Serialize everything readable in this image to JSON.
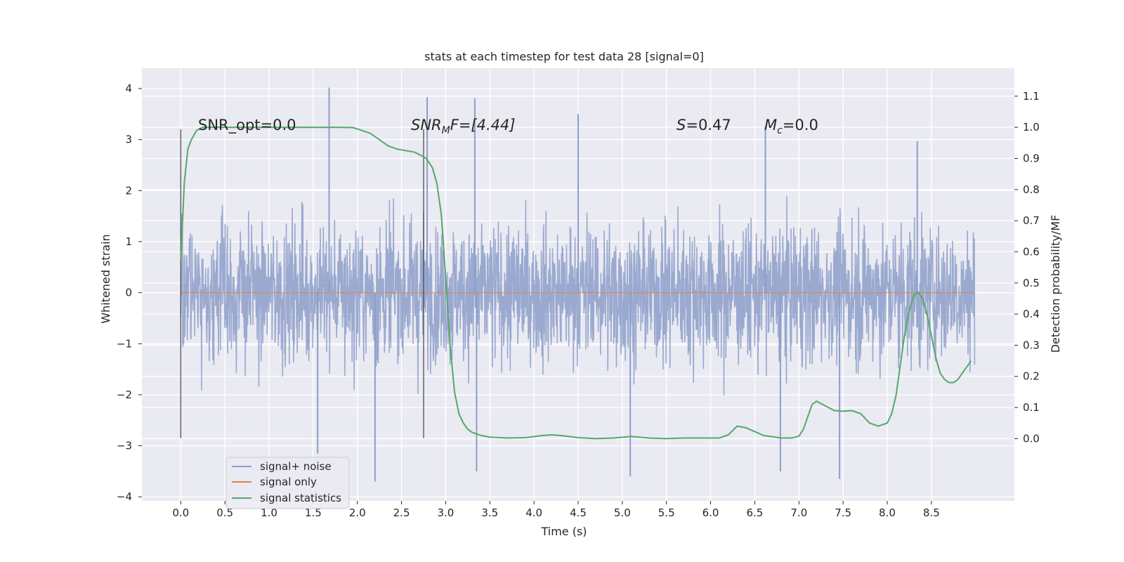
{
  "chart_data": {
    "type": "line",
    "title": "stats at each timestep for test data 28 [signal=0]",
    "xlabel": "Time (s)",
    "ylabel": "Whitened strain",
    "y2label": "Detection probability/MF",
    "xlim": [
      -0.44,
      9.44
    ],
    "ylim": [
      -4.08,
      4.4
    ],
    "y2lim": [
      -0.2,
      1.19
    ],
    "xticks": [
      "0.0",
      "0.5",
      "1.0",
      "1.5",
      "2.0",
      "2.5",
      "3.0",
      "3.5",
      "4.0",
      "4.5",
      "5.0",
      "5.5",
      "6.0",
      "6.5",
      "7.0",
      "7.5",
      "8.0",
      "8.5"
    ],
    "yticks": [
      "4",
      "3",
      "2",
      "1",
      "0",
      "−1",
      "−2",
      "−3",
      "−4"
    ],
    "y2ticks": [
      "1.1",
      "1.0",
      "0.9",
      "0.8",
      "0.7",
      "0.6",
      "0.5",
      "0.4",
      "0.3",
      "0.2",
      "0.1",
      "0.0"
    ],
    "grid": true,
    "legend_position": "lower-left",
    "legend": [
      {
        "label": "signal+ noise",
        "color": "#8c9ec9"
      },
      {
        "label": "signal only",
        "color": "#dd8452"
      },
      {
        "label": "signal statistics",
        "color": "#55a868"
      }
    ],
    "annotations": {
      "snr_opt": "SNR_opt=0.0",
      "snr_mf_base": "SNR",
      "snr_mf_sub": "M",
      "snr_mf_rest": "F=[4.44]",
      "s_label": "S",
      "s_value": "=0.47",
      "mc_base": "M",
      "mc_sub": "c",
      "mc_value": "=0.0"
    },
    "vlines": [
      {
        "x": 0.0,
        "y_range": [
          -2.85,
          3.2
        ]
      },
      {
        "x": 2.75,
        "y_range": [
          -2.85,
          3.2
        ]
      }
    ],
    "series": [
      {
        "name": "signal+ noise",
        "color": "#8c9ec9",
        "description_range": {
          "x": [
            0.0,
            8.99
          ],
          "band_y": [
            -1.4,
            1.4
          ],
          "spike_max": 4.0,
          "spike_min": -3.7
        },
        "spikes": [
          {
            "x": 1.68,
            "y": 4.02
          },
          {
            "x": 2.79,
            "y": 3.83
          },
          {
            "x": 3.33,
            "y": 3.81
          },
          {
            "x": 2.2,
            "y": -3.7
          },
          {
            "x": 7.46,
            "y": -3.65
          },
          {
            "x": 5.09,
            "y": -3.6
          },
          {
            "x": 3.35,
            "y": -3.5
          },
          {
            "x": 6.79,
            "y": -3.5
          },
          {
            "x": 1.55,
            "y": -3.15
          },
          {
            "x": 4.5,
            "y": 3.5
          },
          {
            "x": 8.34,
            "y": 2.97
          },
          {
            "x": 6.62,
            "y": 3.25
          }
        ]
      },
      {
        "name": "signal only",
        "color": "#dd8452",
        "x": [
          0.0,
          8.99
        ],
        "y": [
          0.0,
          0.0
        ]
      },
      {
        "name": "signal statistics",
        "color": "#55a868",
        "axis": "right",
        "x": [
          0.0,
          0.04,
          0.08,
          0.12,
          0.18,
          0.25,
          0.4,
          0.6,
          1.0,
          1.5,
          1.8,
          1.95,
          2.05,
          2.15,
          2.25,
          2.35,
          2.45,
          2.55,
          2.65,
          2.72,
          2.78,
          2.85,
          2.9,
          2.95,
          3.0,
          3.05,
          3.1,
          3.15,
          3.2,
          3.25,
          3.3,
          3.4,
          3.5,
          3.7,
          3.9,
          4.1,
          4.2,
          4.3,
          4.5,
          4.7,
          4.9,
          5.1,
          5.3,
          5.5,
          5.7,
          5.9,
          6.1,
          6.2,
          6.3,
          6.4,
          6.6,
          6.8,
          6.92,
          7.0,
          7.05,
          7.1,
          7.15,
          7.2,
          7.3,
          7.4,
          7.5,
          7.6,
          7.7,
          7.8,
          7.9,
          8.0,
          8.05,
          8.1,
          8.15,
          8.2,
          8.25,
          8.3,
          8.35,
          8.4,
          8.45,
          8.5,
          8.55,
          8.6,
          8.65,
          8.7,
          8.75,
          8.8,
          8.85,
          8.9,
          8.95
        ],
        "y": [
          0.57,
          0.82,
          0.93,
          0.96,
          0.99,
          1.0,
          1.0,
          1.0,
          1.0,
          1.0,
          1.0,
          0.999,
          0.99,
          0.98,
          0.96,
          0.94,
          0.93,
          0.925,
          0.92,
          0.91,
          0.9,
          0.87,
          0.82,
          0.72,
          0.52,
          0.3,
          0.15,
          0.08,
          0.05,
          0.03,
          0.02,
          0.01,
          0.005,
          0.002,
          0.003,
          0.01,
          0.012,
          0.01,
          0.003,
          0.0,
          0.002,
          0.007,
          0.002,
          0.0,
          0.002,
          0.002,
          0.002,
          0.012,
          0.04,
          0.035,
          0.01,
          0.002,
          0.002,
          0.008,
          0.03,
          0.07,
          0.11,
          0.12,
          0.105,
          0.09,
          0.088,
          0.09,
          0.08,
          0.05,
          0.04,
          0.05,
          0.08,
          0.14,
          0.24,
          0.34,
          0.41,
          0.46,
          0.47,
          0.45,
          0.4,
          0.33,
          0.26,
          0.21,
          0.19,
          0.18,
          0.18,
          0.19,
          0.21,
          0.23,
          0.25
        ]
      }
    ]
  }
}
